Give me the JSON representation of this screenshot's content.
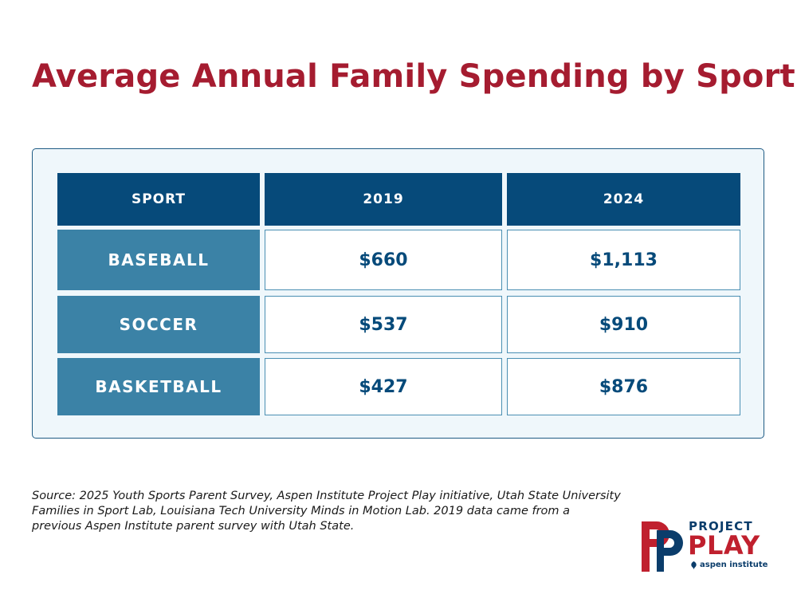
{
  "title": "Average Annual Family Spending by Sport",
  "colors": {
    "title": "#a51c30",
    "header_bg": "#064a7a",
    "sport_bg": "#3b82a6",
    "value_text": "#064a7a",
    "logo_red": "#c0202e",
    "logo_navy": "#0b3d6b"
  },
  "chart_data": {
    "type": "table",
    "title": "Average Annual Family Spending by Sport",
    "columns": [
      "SPORT",
      "2019",
      "2024"
    ],
    "rows": [
      {
        "sport": "BASEBALL",
        "y2019": "$660",
        "y2024": "$1,113"
      },
      {
        "sport": "SOCCER",
        "y2019": "$537",
        "y2024": "$910"
      },
      {
        "sport": "BASKETBALL",
        "y2019": "$427",
        "y2024": "$876"
      }
    ],
    "values": {
      "BASEBALL": [
        660,
        1113
      ],
      "SOCCER": [
        537,
        910
      ],
      "BASKETBALL": [
        427,
        876
      ]
    },
    "unit": "USD"
  },
  "source": "Source: 2025 Youth Sports Parent Survey, Aspen Institute Project Play initiative, Utah State University Families in Sport Lab, Louisiana Tech University Minds in Motion Lab. 2019 data came from a previous Aspen Institute parent survey with Utah State.",
  "logo": {
    "project": "PROJECT",
    "play": "PLAY",
    "aspen": "aspen institute",
    "mark_letters": "PP"
  }
}
